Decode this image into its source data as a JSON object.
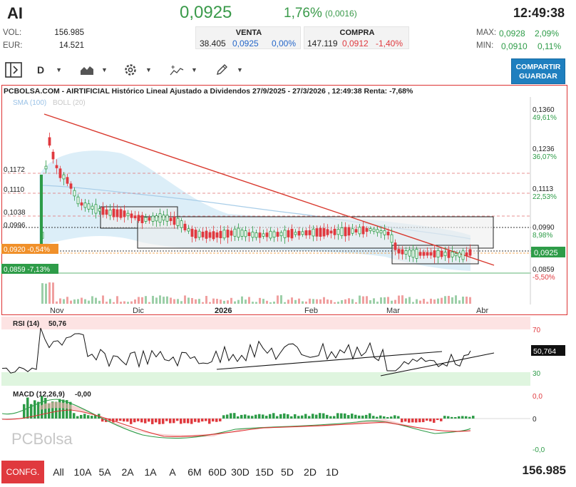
{
  "header": {
    "ticker": "AI",
    "price": "0,0925",
    "change_pct": "1,76%",
    "change_abs": "(0,0016)",
    "time": "12:49:38",
    "vol_label": "VOL:",
    "vol_value": "156.985",
    "eur_label": "EUR:",
    "eur_value": "14.521",
    "venta": {
      "label": "VENTA",
      "qty": "38.405",
      "price": "0,0925",
      "pct": "0,00%"
    },
    "compra": {
      "label": "COMPRA",
      "qty": "147.119",
      "price": "0,0912",
      "pct": "-1,40%"
    },
    "max_label": "MAX:",
    "max_value": "0,0928",
    "max_pct": "2,09%",
    "min_label": "MIN:",
    "min_value": "0,0910",
    "min_pct": "0,11%"
  },
  "toolbar": {
    "period_label": "D",
    "save_label_1": "COMPARTIR",
    "save_label_2": "GUARDAR"
  },
  "chart": {
    "title": "PCBOLSA.COM - AIRTIFICIAL Histórico Lineal Ajustado a Dividendos 27/9/2025 - 27/3/2026 , 12:49:38 Renta: -7,68%",
    "legend_sma": "SMA (100)",
    "legend_boll": "BOLL (20)",
    "x_labels": [
      "Nov",
      "Dic",
      "2026",
      "Feb",
      "Mar",
      "Abr"
    ],
    "right_labels": [
      {
        "text": "0,1360",
        "pct": "49,61%"
      },
      {
        "text": "0,1236",
        "pct": "36,07%"
      },
      {
        "text": "0,1113",
        "pct": "22,53%"
      },
      {
        "text": "0,0990",
        "pct": "8,98%"
      },
      {
        "text": "0,0925",
        "pct": ""
      },
      {
        "text": "0,0859",
        "pct": "-5,50%"
      }
    ],
    "left_labels": [
      "0,1172",
      "0,1110",
      "0,1038",
      "0,0996"
    ],
    "left_tag_orange": "0,0920 -0,54%",
    "left_tag_green": "0,0859 -7,13%",
    "current_tag": "0,0925",
    "accent_green": "#2e9c48",
    "accent_red": "#e0393e",
    "accent_orange": "#f0902a"
  },
  "rsi": {
    "label": "RSI (14)",
    "value": "50,76",
    "level_high": "70",
    "level_low": "30",
    "current_tag": "50,764"
  },
  "macd": {
    "label": "MACD (12,26,9)",
    "value": "-0,00",
    "axis_top": "0,0",
    "axis_mid": "0",
    "axis_bottom": "-0,0",
    "watermark": "PCBolsa"
  },
  "footer": {
    "config_label": "CONFG.",
    "periods": [
      "All",
      "10A",
      "5A",
      "2A",
      "1A",
      "A",
      "6M",
      "60D",
      "30D",
      "15D",
      "5D",
      "2D",
      "1D"
    ],
    "volume": "156.985"
  }
}
